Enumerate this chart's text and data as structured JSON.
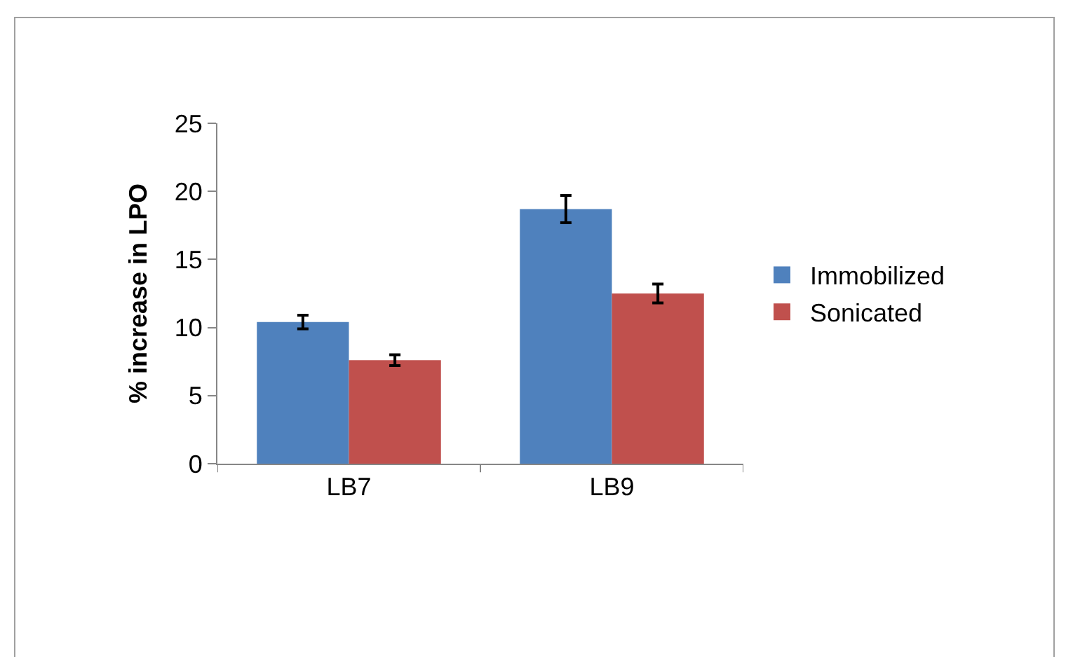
{
  "chart_data": {
    "type": "bar",
    "ylabel": "% increase in LPO",
    "categories": [
      "LB7",
      "LB9"
    ],
    "series": [
      {
        "name": "Immobilized",
        "color": "#4f81bd",
        "values": [
          10.4,
          18.7
        ],
        "errors": [
          0.5,
          1.0
        ]
      },
      {
        "name": "Sonicated",
        "color": "#c0504d",
        "values": [
          7.6,
          12.5
        ],
        "errors": [
          0.4,
          0.7
        ]
      }
    ],
    "ylim": [
      0,
      25
    ],
    "yticks": [
      0,
      5,
      10,
      15,
      20,
      25
    ],
    "grid": false,
    "legend": "right"
  }
}
